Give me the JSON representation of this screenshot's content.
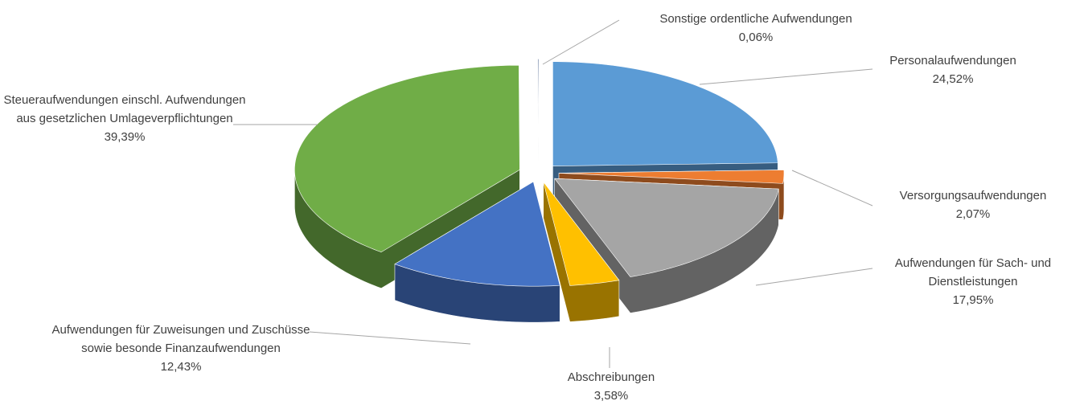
{
  "chart_data": {
    "type": "pie3d",
    "categories": [
      "Personalaufwendungen",
      "Versorgungsaufwendungen",
      "Aufwendungen für Sach- und Dienstleistungen",
      "Abschreibungen",
      "Aufwendungen für Zuweisungen und Zuschüsse sowie besonde Finanzaufwendungen",
      "Steueraufwendungen einschl. Aufwendungen aus gesetzlichen Umlageverpflichtungen",
      "Sonstige ordentliche Aufwendungen"
    ],
    "values": [
      24.52,
      2.07,
      17.95,
      3.58,
      12.43,
      39.39,
      0.06
    ],
    "value_labels": [
      "24,52%",
      "2,07%",
      "17,95%",
      "3,58%",
      "12,43%",
      "39,39%",
      "0,06%"
    ],
    "colors": [
      "#5b9bd5",
      "#ed7d31",
      "#a5a5a5",
      "#ffc000",
      "#4472c4",
      "#70ad47",
      "#264478"
    ]
  }
}
